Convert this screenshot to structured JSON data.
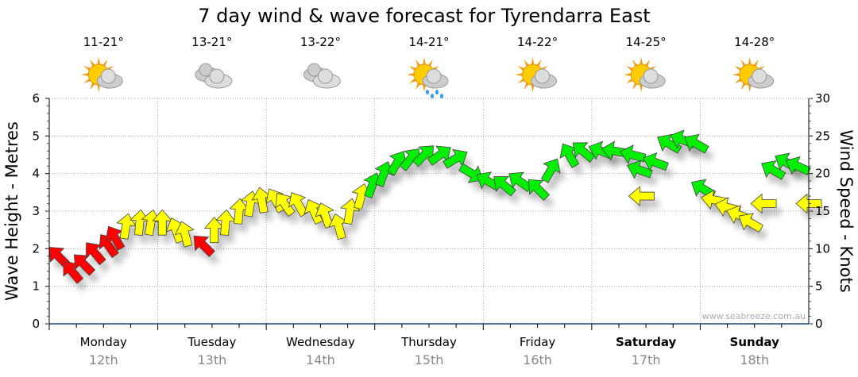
{
  "chart_data": {
    "type": "scatter",
    "title": "7 day wind & wave forecast for Tyrendarra East",
    "ylabel": "Wave Height - Metres",
    "y2label": "Wind Speed - Knots",
    "ylim": [
      0,
      6
    ],
    "y2lim": [
      0,
      30
    ],
    "yticks": [
      "0",
      "1",
      "2",
      "3",
      "4",
      "5",
      "6"
    ],
    "y2ticks": [
      "0",
      "5",
      "10",
      "15",
      "20",
      "25",
      "30"
    ],
    "grid": true,
    "watermark": "www.seabreeze.com.au",
    "days": [
      {
        "name": "Monday",
        "date": "12th",
        "temp": "11-21°",
        "icon": "sun-cloud",
        "bold": false
      },
      {
        "name": "Tuesday",
        "date": "13th",
        "temp": "13-21°",
        "icon": "cloud",
        "bold": false
      },
      {
        "name": "Wednesday",
        "date": "14th",
        "temp": "13-22°",
        "icon": "cloud",
        "bold": false
      },
      {
        "name": "Thursday",
        "date": "15th",
        "temp": "14-21°",
        "icon": "sun-rain",
        "bold": false
      },
      {
        "name": "Friday",
        "date": "16th",
        "temp": "14-22°",
        "icon": "sun-cloud",
        "bold": false
      },
      {
        "name": "Saturday",
        "date": "17th",
        "temp": "14-25°",
        "icon": "sun-cloud",
        "bold": true
      },
      {
        "name": "Sunday",
        "date": "18th",
        "temp": "14-28°",
        "icon": "sun-cloud",
        "bold": true
      }
    ],
    "colors": {
      "red": "#ff0000",
      "yellow": "#ffff00",
      "green": "#00ee00"
    },
    "wind": {
      "fields": [
        "hour",
        "knots",
        "heading_deg",
        "color"
      ],
      "points": [
        [
          2,
          9,
          315,
          "red"
        ],
        [
          5,
          7,
          320,
          "red"
        ],
        [
          7.5,
          8,
          315,
          "red"
        ],
        [
          10,
          9.5,
          320,
          "red"
        ],
        [
          13,
          10.5,
          325,
          "red"
        ],
        [
          14.5,
          11.5,
          330,
          "red"
        ],
        [
          17,
          13,
          10,
          "yellow"
        ],
        [
          20,
          13.5,
          5,
          "yellow"
        ],
        [
          22.5,
          13.5,
          10,
          "yellow"
        ],
        [
          25,
          13.5,
          0,
          "yellow"
        ],
        [
          28,
          12.5,
          340,
          "yellow"
        ],
        [
          30,
          12,
          345,
          "yellow"
        ],
        [
          34,
          10.5,
          315,
          "red"
        ],
        [
          36.5,
          12.5,
          0,
          "yellow"
        ],
        [
          39,
          13.5,
          5,
          "yellow"
        ],
        [
          42,
          15,
          5,
          "yellow"
        ],
        [
          44.5,
          16,
          10,
          "yellow"
        ],
        [
          47,
          16.5,
          350,
          "yellow"
        ],
        [
          50,
          16.5,
          330,
          "yellow"
        ],
        [
          52,
          16,
          325,
          "yellow"
        ],
        [
          55,
          16,
          330,
          "yellow"
        ],
        [
          58.5,
          15,
          335,
          "yellow"
        ],
        [
          61,
          14.5,
          340,
          "yellow"
        ],
        [
          64,
          13,
          345,
          "yellow"
        ],
        [
          66.5,
          15,
          10,
          "yellow"
        ],
        [
          69,
          17,
          15,
          "yellow"
        ],
        [
          71.5,
          18.5,
          20,
          "green"
        ],
        [
          74,
          20,
          20,
          "green"
        ],
        [
          77,
          21.5,
          30,
          "green"
        ],
        [
          80,
          22,
          40,
          "green"
        ],
        [
          83,
          22.5,
          45,
          "green"
        ],
        [
          86.5,
          22.5,
          55,
          "green"
        ],
        [
          90,
          22,
          60,
          "green"
        ],
        [
          93.5,
          20,
          120,
          "green"
        ],
        [
          97,
          19,
          300,
          "green"
        ],
        [
          100.5,
          18.5,
          310,
          "green"
        ],
        [
          104,
          19,
          305,
          "green"
        ],
        [
          108,
          18,
          315,
          "green"
        ],
        [
          111,
          20.5,
          30,
          "green"
        ],
        [
          115,
          22.5,
          330,
          "green"
        ],
        [
          118,
          23,
          310,
          "green"
        ],
        [
          122,
          23,
          290,
          "green"
        ],
        [
          125,
          23,
          280,
          "green"
        ],
        [
          129,
          22.5,
          285,
          "green"
        ],
        [
          130.5,
          20.5,
          290,
          "green"
        ],
        [
          131,
          17,
          270,
          "yellow"
        ],
        [
          134,
          21.5,
          290,
          "green"
        ],
        [
          137,
          24,
          300,
          "green"
        ],
        [
          140,
          24.5,
          290,
          "green"
        ],
        [
          143,
          24,
          300,
          "green"
        ],
        [
          144.5,
          18,
          300,
          "green"
        ],
        [
          147,
          16.5,
          280,
          "yellow"
        ],
        [
          150,
          15.5,
          285,
          "yellow"
        ],
        [
          152.5,
          14.5,
          290,
          "yellow"
        ],
        [
          155,
          13.5,
          300,
          "yellow"
        ],
        [
          158,
          16,
          270,
          "yellow"
        ],
        [
          160,
          20.5,
          300,
          "green"
        ],
        [
          163,
          21.5,
          300,
          "green"
        ],
        [
          165.5,
          21,
          295,
          "green"
        ],
        [
          168,
          16,
          270,
          "yellow"
        ]
      ]
    }
  }
}
